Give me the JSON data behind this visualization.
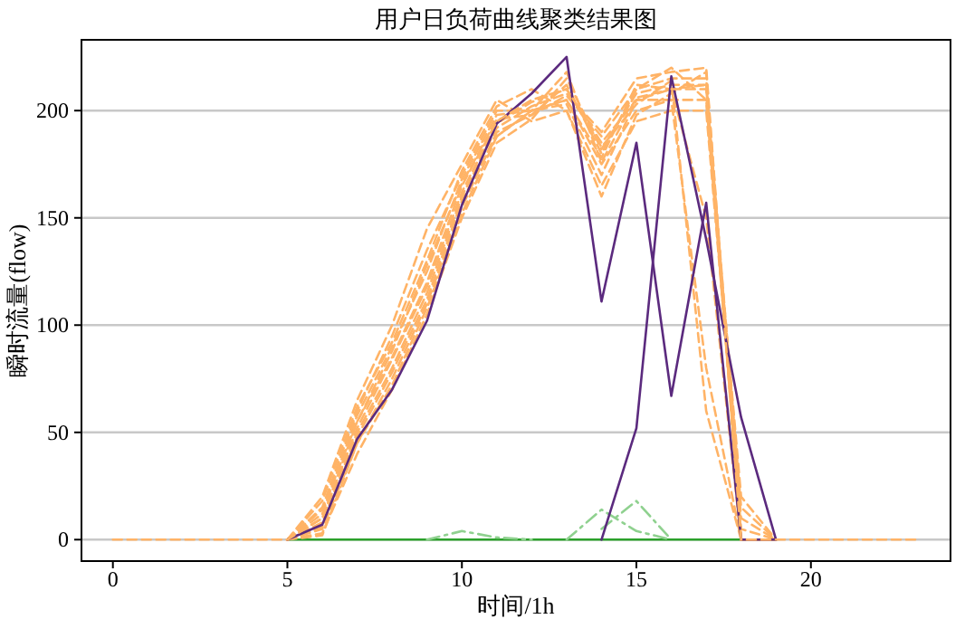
{
  "chart_data": {
    "type": "line",
    "title": "用户日负荷曲线聚类结果图",
    "xlabel": "时间/1h",
    "ylabel": "瞬时流量(flow)",
    "x": [
      0,
      1,
      2,
      3,
      4,
      5,
      6,
      7,
      8,
      9,
      10,
      11,
      12,
      13,
      14,
      15,
      16,
      17,
      18,
      19,
      20,
      21,
      22,
      23
    ],
    "xlim": [
      -0.9,
      24
    ],
    "ylim": [
      -10,
      233
    ],
    "xticks": [
      0,
      5,
      10,
      15,
      20
    ],
    "yticks": [
      0,
      50,
      100,
      150,
      200
    ],
    "grid": "y",
    "series": [
      {
        "color": "#2ca02c",
        "line_style": "solid",
        "values": [
          null,
          null,
          null,
          null,
          null,
          0,
          0,
          0,
          0,
          0,
          0,
          0,
          0,
          0,
          0,
          0,
          0,
          0,
          0,
          0,
          null,
          null,
          null,
          null
        ]
      },
      {
        "color": "#8fd18f",
        "line_style": "dashdot",
        "values": [
          null,
          null,
          null,
          null,
          null,
          null,
          null,
          null,
          null,
          0,
          4,
          1,
          0,
          null,
          null,
          null,
          null,
          null,
          null,
          null,
          null,
          null,
          null,
          null
        ]
      },
      {
        "color": "#8fd18f",
        "line_style": "dashdot",
        "values": [
          null,
          null,
          null,
          null,
          null,
          null,
          null,
          null,
          null,
          null,
          null,
          null,
          null,
          0,
          14,
          4,
          0,
          null,
          null,
          null,
          null,
          null,
          null,
          null
        ]
      },
      {
        "color": "#8fd18f",
        "line_style": "dashdot",
        "values": [
          null,
          null,
          null,
          null,
          null,
          null,
          null,
          null,
          null,
          null,
          null,
          null,
          null,
          null,
          5,
          18,
          0,
          null,
          null,
          null,
          null,
          null,
          null,
          null
        ]
      },
      {
        "color": "#ffb366",
        "line_style": "dashed",
        "values": [
          null,
          null,
          null,
          null,
          null,
          0,
          15,
          60,
          95,
          135,
          170,
          200,
          200,
          205,
          175,
          200,
          205,
          205,
          5,
          0,
          null,
          null,
          null,
          null
        ]
      },
      {
        "color": "#ffb366",
        "line_style": "dashed",
        "values": [
          null,
          null,
          null,
          null,
          null,
          0,
          5,
          45,
          75,
          110,
          155,
          190,
          198,
          212,
          180,
          210,
          215,
          215,
          0,
          0,
          null,
          null,
          null,
          null
        ]
      },
      {
        "color": "#ffb366",
        "line_style": "dashed",
        "values": [
          null,
          null,
          null,
          null,
          null,
          0,
          20,
          65,
          100,
          145,
          175,
          205,
          195,
          200,
          165,
          195,
          200,
          200,
          10,
          0,
          null,
          null,
          null,
          null
        ]
      },
      {
        "color": "#ffb366",
        "line_style": "dashed",
        "values": [
          null,
          null,
          null,
          null,
          null,
          0,
          8,
          50,
          80,
          115,
          160,
          192,
          202,
          208,
          190,
          215,
          218,
          220,
          0,
          0,
          null,
          null,
          null,
          null
        ]
      },
      {
        "color": "#ffb366",
        "line_style": "dashed",
        "values": [
          null,
          null,
          null,
          null,
          null,
          0,
          12,
          58,
          90,
          125,
          168,
          198,
          200,
          203,
          170,
          205,
          205,
          80,
          0,
          0,
          null,
          null,
          null,
          null
        ]
      },
      {
        "color": "#ffb366",
        "line_style": "dashed",
        "values": [
          null,
          null,
          null,
          null,
          null,
          0,
          3,
          40,
          70,
          105,
          150,
          185,
          196,
          215,
          182,
          208,
          212,
          212,
          15,
          0,
          null,
          null,
          null,
          null
        ]
      },
      {
        "color": "#ffb366",
        "line_style": "dashed",
        "values": [
          null,
          null,
          null,
          null,
          null,
          0,
          18,
          62,
          92,
          130,
          172,
          202,
          210,
          200,
          160,
          198,
          208,
          218,
          0,
          0,
          null,
          null,
          null,
          null
        ]
      },
      {
        "color": "#ffb366",
        "line_style": "dashed",
        "values": [
          null,
          null,
          null,
          null,
          null,
          0,
          6,
          48,
          78,
          112,
          158,
          188,
          200,
          205,
          178,
          212,
          210,
          150,
          0,
          0,
          null,
          null,
          null,
          null
        ]
      },
      {
        "color": "#ffb366",
        "line_style": "dashed",
        "values": [
          null,
          null,
          null,
          null,
          null,
          0,
          14,
          55,
          88,
          128,
          166,
          196,
          198,
          207,
          188,
          210,
          220,
          205,
          20,
          0,
          null,
          null,
          null,
          null
        ]
      },
      {
        "color": "#ffb366",
        "line_style": "dashed",
        "values": [
          null,
          null,
          null,
          null,
          null,
          0,
          10,
          52,
          84,
          118,
          162,
          194,
          204,
          210,
          183,
          203,
          214,
          60,
          0,
          0,
          null,
          null,
          null,
          null
        ]
      },
      {
        "color": "#ffb366",
        "line_style": "dashed",
        "values": [
          null,
          null,
          null,
          null,
          null,
          0,
          2,
          45,
          72,
          108,
          152,
          188,
          200,
          218,
          176,
          206,
          210,
          212,
          0,
          0,
          null,
          null,
          null,
          null
        ]
      },
      {
        "color": "#5b2a7e",
        "line_style": "solid",
        "values": [
          null,
          null,
          null,
          null,
          null,
          0,
          7,
          47,
          70,
          102,
          156,
          194,
          208,
          225,
          111,
          185,
          67,
          157,
          0,
          0,
          null,
          null,
          null,
          null
        ]
      },
      {
        "color": "#5b2a7e",
        "line_style": "solid",
        "values": [
          null,
          null,
          null,
          null,
          null,
          null,
          null,
          null,
          null,
          null,
          null,
          null,
          null,
          null,
          0,
          52,
          216,
          140,
          57,
          0,
          null,
          null,
          null,
          null
        ]
      },
      {
        "color": "#ffb366",
        "line_style": "dashed",
        "values": [
          0,
          0,
          0,
          0,
          0,
          0,
          10,
          55,
          85,
          120,
          165,
          195,
          205,
          210,
          185,
          205,
          210,
          210,
          0,
          0,
          0,
          0,
          0,
          0
        ]
      }
    ]
  }
}
